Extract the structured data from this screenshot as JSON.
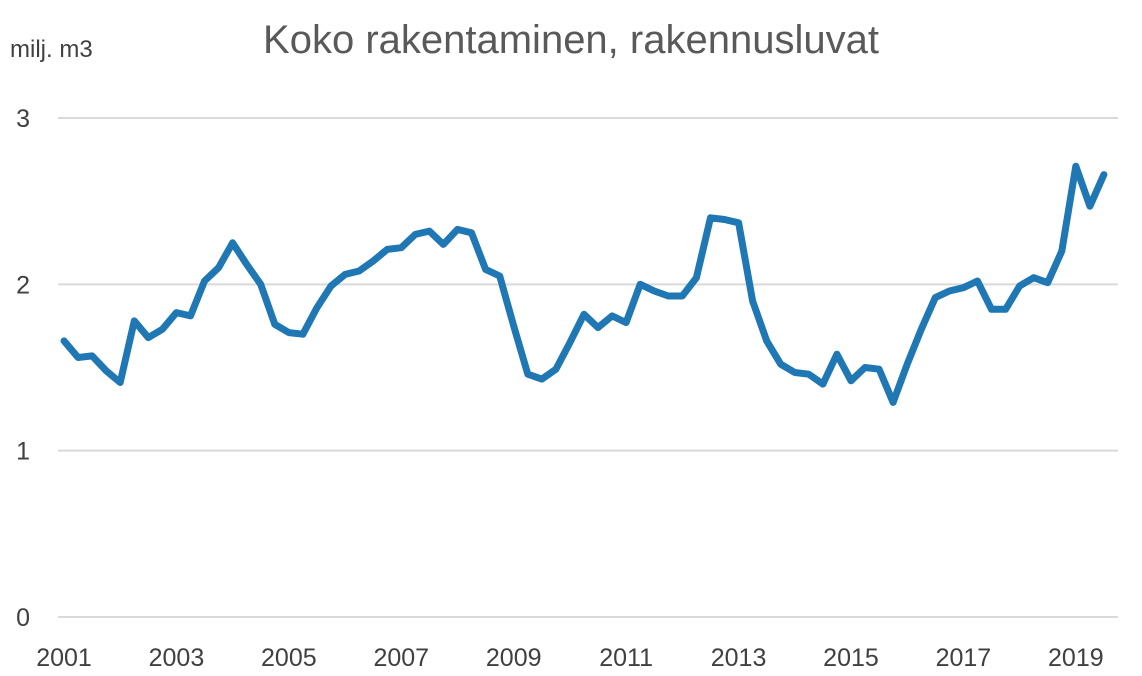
{
  "chart_data": {
    "type": "line",
    "title": "Koko rakentaminen, rakennusluvat",
    "ylabel": "milj. m3",
    "xlabel": "",
    "ylim": [
      0,
      3
    ],
    "yticks": [
      "0",
      "1",
      "2",
      "3"
    ],
    "xlim": [
      2001,
      2019.75
    ],
    "xticks": [
      "2001",
      "2003",
      "2005",
      "2007",
      "2009",
      "2011",
      "2013",
      "2015",
      "2017",
      "2019"
    ],
    "grid": "horizontal",
    "legend": "none",
    "color": "#1F77B4",
    "series": [
      {
        "x": [
          2001.0,
          2001.25,
          2001.5,
          2001.75,
          2002.0,
          2002.25,
          2002.5,
          2002.75,
          2003.0,
          2003.25,
          2003.5,
          2003.75,
          2004.0,
          2004.25,
          2004.5,
          2004.75,
          2005.0,
          2005.25,
          2005.5,
          2005.75,
          2006.0,
          2006.25,
          2006.5,
          2006.75,
          2007.0,
          2007.25,
          2007.5,
          2007.75,
          2008.0,
          2008.25,
          2008.5,
          2008.75,
          2009.0,
          2009.25,
          2009.5,
          2009.75,
          2010.0,
          2010.25,
          2010.5,
          2010.75,
          2011.0,
          2011.25,
          2011.5,
          2011.75,
          2012.0,
          2012.25,
          2012.5,
          2012.75,
          2013.0,
          2013.25,
          2013.5,
          2013.75,
          2014.0,
          2014.25,
          2014.5,
          2014.75,
          2015.0,
          2015.25,
          2015.5,
          2015.75,
          2016.0,
          2016.25,
          2016.5,
          2016.75,
          2017.0,
          2017.25,
          2017.5,
          2017.75,
          2018.0,
          2018.25,
          2018.5,
          2018.75,
          2019.0,
          2019.25,
          2019.5
        ],
        "values": [
          1.66,
          1.56,
          1.57,
          1.48,
          1.41,
          1.78,
          1.68,
          1.73,
          1.83,
          1.81,
          2.02,
          2.1,
          2.25,
          2.12,
          2.0,
          1.76,
          1.71,
          1.7,
          1.86,
          1.99,
          2.06,
          2.08,
          2.14,
          2.21,
          2.22,
          2.3,
          2.32,
          2.24,
          2.33,
          2.31,
          2.09,
          2.05,
          1.75,
          1.46,
          1.43,
          1.49,
          1.65,
          1.82,
          1.74,
          1.81,
          1.77,
          2.0,
          1.96,
          1.93,
          1.93,
          2.04,
          2.4,
          2.39,
          2.37,
          1.9,
          1.66,
          1.52,
          1.47,
          1.46,
          1.4,
          1.58,
          1.42,
          1.5,
          1.49,
          1.29,
          1.52,
          1.73,
          1.92,
          1.96,
          1.98,
          2.02,
          1.85,
          1.85,
          1.99,
          2.04,
          2.01,
          2.2,
          2.71,
          2.47,
          2.66
        ]
      }
    ]
  }
}
